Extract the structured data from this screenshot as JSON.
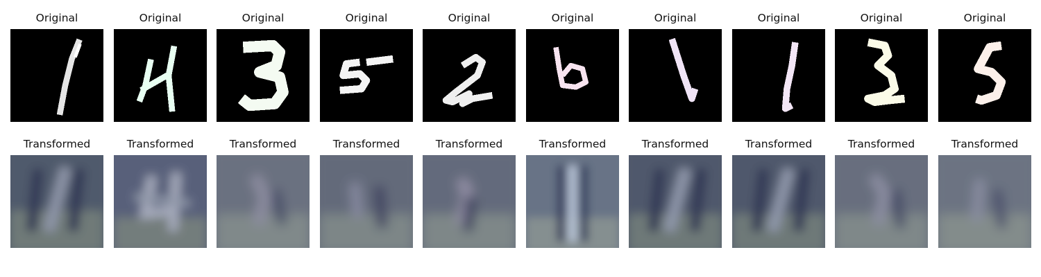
{
  "figure": {
    "original_title": "Original",
    "transformed_title": "Transformed",
    "samples": [
      {
        "digit": "1",
        "tint": "#e6e6e6"
      },
      {
        "digit": "4",
        "tint": "#e8fff2"
      },
      {
        "digit": "3",
        "tint": "#f4fbf2"
      },
      {
        "digit": "5",
        "tint": "#f4f4f4"
      },
      {
        "digit": "2",
        "tint": "#efefef"
      },
      {
        "digit": "6",
        "tint": "#f8e4f0"
      },
      {
        "digit": "1",
        "tint": "#f0e4f6"
      },
      {
        "digit": "1",
        "tint": "#f3e6f6"
      },
      {
        "digit": "3",
        "tint": "#fbfbe8"
      },
      {
        "digit": "5",
        "tint": "#fcf0ea"
      }
    ]
  }
}
